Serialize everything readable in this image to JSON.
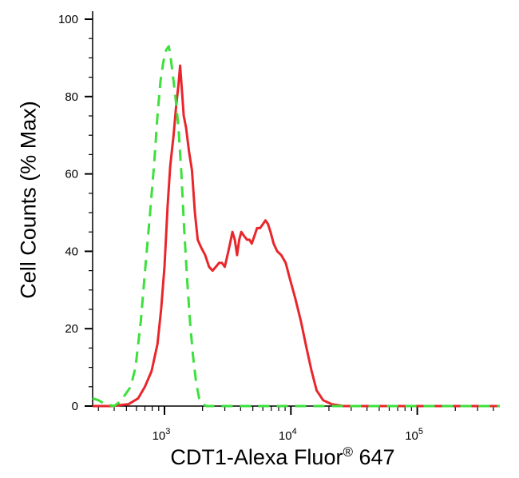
{
  "chart_data": {
    "type": "line",
    "title": "",
    "ylabel": "Cell Counts (% Max)",
    "xlabel": {
      "main": "CDT1-Alexa Fluor",
      "superscript": "®",
      "suffix": "647"
    },
    "xscale": "log",
    "xlim": [
      270,
      450000
    ],
    "ylim": [
      0,
      100
    ],
    "y_ticks": [
      0,
      20,
      40,
      60,
      80,
      100
    ],
    "x_ticks": [
      {
        "value": 1000,
        "base": "10",
        "exp": "3"
      },
      {
        "value": 10000,
        "base": "10",
        "exp": "4"
      },
      {
        "value": 100000,
        "base": "10",
        "exp": "5"
      }
    ],
    "grid": false,
    "series": [
      {
        "color": "#e8262b",
        "style": "solid",
        "points": [
          [
            270,
            0
          ],
          [
            380,
            0
          ],
          [
            520,
            0.5
          ],
          [
            620,
            2
          ],
          [
            700,
            5
          ],
          [
            790,
            9
          ],
          [
            880,
            16
          ],
          [
            940,
            25
          ],
          [
            1000,
            36
          ],
          [
            1060,
            52
          ],
          [
            1110,
            62
          ],
          [
            1180,
            70
          ],
          [
            1240,
            78
          ],
          [
            1290,
            83
          ],
          [
            1330,
            88
          ],
          [
            1370,
            82
          ],
          [
            1420,
            75
          ],
          [
            1480,
            72
          ],
          [
            1560,
            66
          ],
          [
            1650,
            61
          ],
          [
            1740,
            50
          ],
          [
            1830,
            43
          ],
          [
            1950,
            41
          ],
          [
            2100,
            39
          ],
          [
            2250,
            36
          ],
          [
            2400,
            35
          ],
          [
            2550,
            36
          ],
          [
            2700,
            37
          ],
          [
            2850,
            37
          ],
          [
            3000,
            36
          ],
          [
            3150,
            39
          ],
          [
            3300,
            42
          ],
          [
            3450,
            45
          ],
          [
            3600,
            43
          ],
          [
            3750,
            39
          ],
          [
            3900,
            43
          ],
          [
            4050,
            45
          ],
          [
            4250,
            44
          ],
          [
            4500,
            43
          ],
          [
            4700,
            43
          ],
          [
            4900,
            42
          ],
          [
            5150,
            44
          ],
          [
            5400,
            46
          ],
          [
            5700,
            46
          ],
          [
            6000,
            47
          ],
          [
            6300,
            48
          ],
          [
            6600,
            47
          ],
          [
            6900,
            45
          ],
          [
            7300,
            42
          ],
          [
            7800,
            40
          ],
          [
            8400,
            39
          ],
          [
            9100,
            37
          ],
          [
            9800,
            33
          ],
          [
            10800,
            28
          ],
          [
            12000,
            22
          ],
          [
            13300,
            15
          ],
          [
            14600,
            9
          ],
          [
            16000,
            4
          ],
          [
            18000,
            1.5
          ],
          [
            21000,
            0.5
          ],
          [
            26000,
            0
          ],
          [
            450000,
            0
          ]
        ]
      },
      {
        "color": "#3de03d",
        "style": "dashed",
        "points": [
          [
            270,
            2
          ],
          [
            300,
            1.5
          ],
          [
            340,
            0.5
          ],
          [
            400,
            0
          ],
          [
            440,
            1
          ],
          [
            490,
            3
          ],
          [
            540,
            5
          ],
          [
            590,
            10
          ],
          [
            650,
            22
          ],
          [
            710,
            37
          ],
          [
            770,
            50
          ],
          [
            830,
            63
          ],
          [
            880,
            75
          ],
          [
            930,
            84
          ],
          [
            980,
            89
          ],
          [
            1030,
            92
          ],
          [
            1080,
            93
          ],
          [
            1110,
            91
          ],
          [
            1160,
            86
          ],
          [
            1220,
            80
          ],
          [
            1290,
            72
          ],
          [
            1360,
            60
          ],
          [
            1430,
            46
          ],
          [
            1510,
            33
          ],
          [
            1590,
            22
          ],
          [
            1680,
            13
          ],
          [
            1780,
            6
          ],
          [
            1880,
            2
          ],
          [
            2000,
            0.5
          ],
          [
            2150,
            0
          ],
          [
            450000,
            0
          ]
        ]
      }
    ]
  }
}
